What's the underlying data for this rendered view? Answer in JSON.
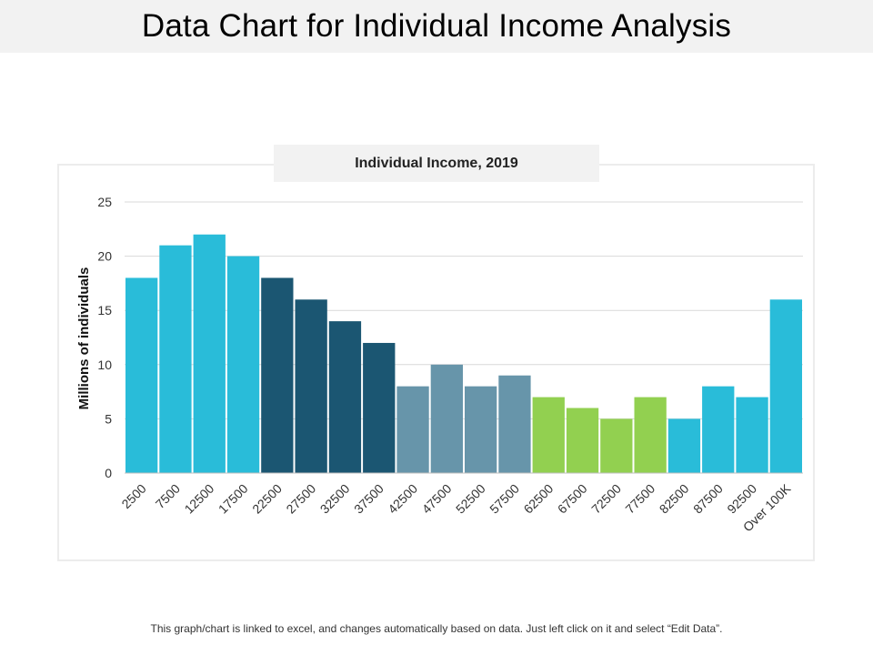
{
  "page": {
    "title": "Data Chart for Individual Income Analysis",
    "footer": "This graph/chart is linked to excel, and changes automatically based on data. Just left click on it and select “Edit Data”."
  },
  "colors": {
    "cyan": "#29bcd9",
    "dark_teal": "#1b5672",
    "slate": "#6795aa",
    "green": "#92d050",
    "grid": "#d9d9d9",
    "axis": "#bfbfbf"
  },
  "chart_data": {
    "type": "bar",
    "title": "Individual Income, 2019",
    "xlabel": "",
    "ylabel": "Millions of individuals",
    "ylim": [
      0,
      25
    ],
    "yticks": [
      0,
      5,
      10,
      15,
      20,
      25
    ],
    "grid": true,
    "categories": [
      "2500",
      "7500",
      "12500",
      "17500",
      "22500",
      "27500",
      "32500",
      "37500",
      "42500",
      "47500",
      "52500",
      "57500",
      "62500",
      "67500",
      "72500",
      "77500",
      "82500",
      "87500",
      "92500",
      "Over 100K"
    ],
    "values": [
      18,
      21,
      22,
      20,
      18,
      16,
      14,
      12,
      8,
      10,
      8,
      9,
      7,
      6,
      5,
      7,
      5,
      8,
      7,
      16
    ],
    "bar_color_keys": [
      "cyan",
      "cyan",
      "cyan",
      "cyan",
      "dark_teal",
      "dark_teal",
      "dark_teal",
      "dark_teal",
      "slate",
      "slate",
      "slate",
      "slate",
      "green",
      "green",
      "green",
      "green",
      "cyan",
      "cyan",
      "cyan",
      "cyan"
    ]
  }
}
